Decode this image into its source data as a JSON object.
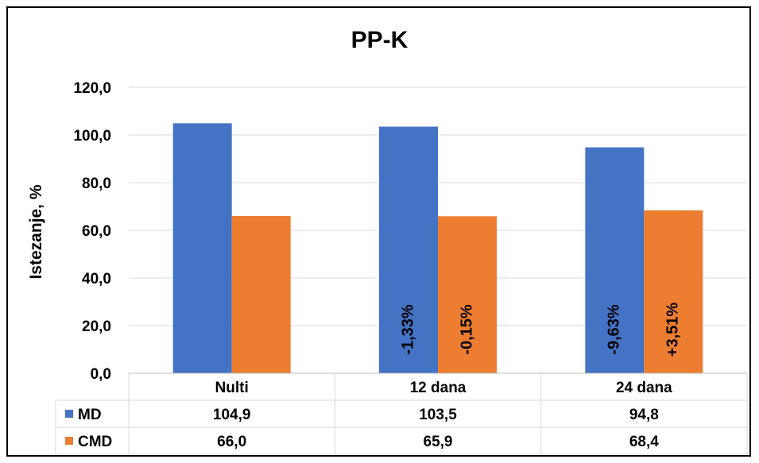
{
  "chart_data": {
    "type": "bar",
    "title": "PP-K",
    "ylabel": "Istezanje, %",
    "xlabel": "",
    "categories": [
      "Nulti",
      "12 dana",
      "24 dana"
    ],
    "series": [
      {
        "name": "MD",
        "color": "#4472C4",
        "values": [
          104.9,
          103.5,
          94.8
        ],
        "display_values": [
          "104,9",
          "103,5",
          "94,8"
        ],
        "bar_labels": [
          "",
          "-1,33%",
          "-9,63%"
        ]
      },
      {
        "name": "CMD",
        "color": "#ED7D31",
        "values": [
          66.0,
          65.9,
          68.4
        ],
        "display_values": [
          "66,0",
          "65,9",
          "68,4"
        ],
        "bar_labels": [
          "",
          "-0,15%",
          "+3,51%"
        ]
      }
    ],
    "ylim": [
      0,
      120
    ],
    "yticks": [
      0,
      20,
      40,
      60,
      80,
      100,
      120
    ],
    "ytick_labels": [
      "0,0",
      "20,0",
      "40,0",
      "60,0",
      "80,0",
      "100,0",
      "120,0"
    ],
    "grid": true,
    "legend": "data-table"
  }
}
